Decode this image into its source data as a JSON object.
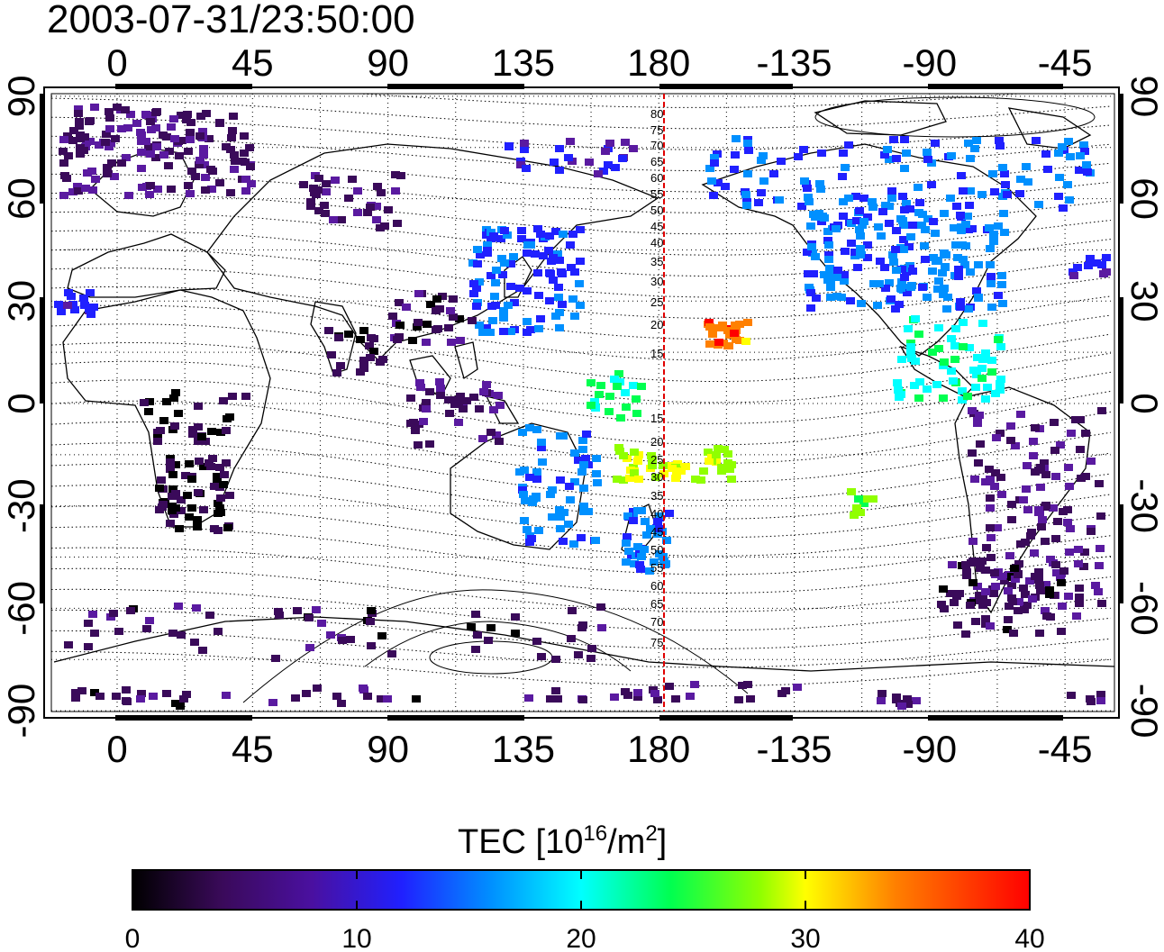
{
  "timestamp": "2003-07-31/23:50:00",
  "map": {
    "projection": "equirectangular",
    "top_lon_ticks": [
      "0",
      "45",
      "90",
      "135",
      "180",
      "-135",
      "-90",
      "-45"
    ],
    "bottom_lon_ticks": [
      "0",
      "45",
      "90",
      "135",
      "180",
      "-135",
      "-90",
      "-45"
    ],
    "lat_ticks": [
      "90",
      "60",
      "30",
      "0",
      "-30",
      "-60",
      "-90"
    ],
    "grid": "dotted",
    "meridian_line": {
      "lon": 182,
      "color": "#e00000"
    },
    "contour_labels": [
      "80",
      "75",
      "70",
      "65",
      "60",
      "55",
      "50",
      "45",
      "40",
      "35",
      "30",
      "25",
      "20",
      "15",
      "15",
      "20",
      "25",
      "30",
      "35",
      "40",
      "45",
      "50",
      "55",
      "60",
      "65",
      "70",
      "75"
    ]
  },
  "colorbar": {
    "title_main": "TEC  [10",
    "title_exp": "16",
    "title_unit": "/m",
    "title_exp2": "2",
    "title_close": "]",
    "ticks": [
      "0",
      "10",
      "20",
      "30",
      "40"
    ],
    "range": [
      0,
      40
    ],
    "colors": [
      "#000000",
      "#3a0a5a",
      "#5a1aa0",
      "#2020ff",
      "#0090ff",
      "#00ffff",
      "#00ff50",
      "#90ff00",
      "#ffff00",
      "#ff8000",
      "#ff0000"
    ]
  }
}
